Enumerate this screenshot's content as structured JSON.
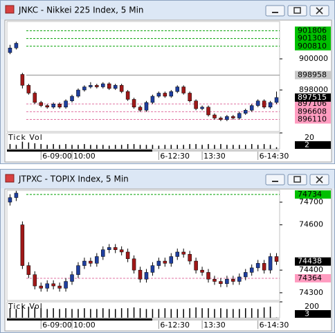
{
  "chart_data": [
    {
      "type": "candlestick",
      "title": "JNKC - Nikkei 225 Index, 5 Min",
      "categories": [
        null,
        null,
        null,
        null,
        null,
        "6-09:00",
        null,
        null,
        null,
        null,
        "10:00",
        null,
        null,
        null,
        null,
        null,
        null,
        null,
        null,
        null,
        null,
        null,
        null,
        null,
        "6-12:30",
        null,
        null,
        null,
        null,
        null,
        null,
        "13:30",
        null,
        null,
        null,
        null,
        null,
        null,
        null,
        null,
        "6-14:30",
        null,
        null,
        null
      ],
      "open": [
        900400,
        900700,
        899000,
        898300,
        897800,
        897200,
        897000,
        896900,
        897100,
        896900,
        897300,
        897600,
        898000,
        898200,
        898300,
        898200,
        898400,
        898100,
        898300,
        897900,
        897400,
        896900,
        896700,
        897200,
        897600,
        897800,
        897600,
        897900,
        898200,
        897800,
        897300,
        896800,
        896900,
        896400,
        896200,
        896100,
        896300,
        896200,
        896500,
        896700,
        897000,
        897300,
        896900,
        897200
      ],
      "high": [
        900900,
        901100,
        899100,
        898400,
        897900,
        897300,
        897100,
        897200,
        897200,
        897400,
        897700,
        898100,
        898300,
        898500,
        898400,
        898500,
        898500,
        898400,
        898400,
        898000,
        897500,
        897000,
        897300,
        897700,
        897900,
        897900,
        898000,
        898300,
        898300,
        897900,
        897400,
        897000,
        897000,
        896500,
        896300,
        896400,
        896400,
        896600,
        896800,
        897100,
        897400,
        897400,
        897300,
        897900
      ],
      "low": [
        900300,
        900600,
        898100,
        897700,
        897100,
        896900,
        896800,
        896800,
        896800,
        896800,
        897200,
        897500,
        897900,
        898100,
        898100,
        898100,
        898000,
        898000,
        897800,
        897300,
        896800,
        896600,
        896600,
        897100,
        897500,
        897500,
        897500,
        897800,
        897700,
        897200,
        896700,
        896700,
        896300,
        896100,
        896000,
        896000,
        896100,
        896100,
        896400,
        896600,
        896900,
        896800,
        896800,
        897100
      ],
      "close": [
        900700,
        901000,
        898300,
        897800,
        897200,
        897000,
        896900,
        897100,
        896900,
        897300,
        897600,
        898000,
        898200,
        898300,
        898200,
        898400,
        898100,
        898300,
        897900,
        897400,
        896900,
        896700,
        897200,
        897600,
        897800,
        897600,
        897900,
        898200,
        897800,
        897300,
        896800,
        896900,
        896400,
        896200,
        896100,
        896300,
        896200,
        896500,
        896700,
        897000,
        897300,
        896900,
        897200,
        897515
      ],
      "up_color": "#1f3f9f",
      "down_color": "#a01818",
      "ylim": [
        895333,
        902400
      ],
      "yticks": [
        898000,
        900000
      ],
      "levels": [
        {
          "value": 901806,
          "color": "#00c000"
        },
        {
          "value": 901308,
          "color": "#00c000"
        },
        {
          "value": 900810,
          "color": "#00c000"
        },
        {
          "value": 898958,
          "color": "#c8c8c8"
        },
        {
          "value": 897106,
          "color": "#ff9cc0"
        },
        {
          "value": 896608,
          "color": "#ff9cc0"
        },
        {
          "value": 896110,
          "color": "#ff9cc0"
        }
      ],
      "volume_label": "Tick Vol",
      "volume_lim": [
        0,
        20
      ],
      "volume_ticks": [
        20
      ],
      "volume": [
        6,
        5,
        9,
        8,
        7,
        6,
        5,
        6,
        5,
        6,
        5,
        5,
        6,
        5,
        5,
        5,
        4,
        5,
        5,
        6,
        6,
        5,
        5,
        5,
        4,
        5,
        5,
        5,
        5,
        6,
        6,
        5,
        6,
        5,
        6,
        5,
        5,
        5,
        5,
        6,
        5,
        6,
        5,
        2
      ]
    },
    {
      "type": "candlestick",
      "title": "JTPXC - TOPIX Index, 5 Min",
      "categories": [
        null,
        null,
        null,
        null,
        null,
        "6-09:00",
        null,
        null,
        null,
        null,
        "10:00",
        null,
        null,
        null,
        null,
        null,
        null,
        null,
        null,
        null,
        null,
        null,
        null,
        null,
        "6-12:30",
        null,
        null,
        null,
        null,
        null,
        null,
        "13:30",
        null,
        null,
        null,
        null,
        null,
        null,
        null,
        null,
        "6-14:30",
        null,
        null,
        null
      ],
      "open": [
        74700,
        74720,
        74600,
        74420,
        74380,
        74330,
        74320,
        74340,
        74330,
        74320,
        74350,
        74380,
        74420,
        74440,
        74430,
        74460,
        74490,
        74500,
        74490,
        74480,
        74450,
        74400,
        74360,
        74390,
        74420,
        74440,
        74430,
        74460,
        74480,
        74470,
        74440,
        74400,
        74390,
        74360,
        74350,
        74340,
        74360,
        74350,
        74370,
        74390,
        74410,
        74430,
        74400,
        74460
      ],
      "high": [
        74735,
        74750,
        74615,
        74435,
        74395,
        74345,
        74355,
        74355,
        74345,
        74365,
        74395,
        74435,
        74455,
        74455,
        74475,
        74505,
        74515,
        74515,
        74505,
        74495,
        74465,
        74415,
        74405,
        74435,
        74455,
        74455,
        74475,
        74495,
        74495,
        74485,
        74455,
        74415,
        74405,
        74375,
        74365,
        74375,
        74375,
        74385,
        74405,
        74425,
        74445,
        74445,
        74475,
        74475
      ],
      "low": [
        74685,
        74705,
        74405,
        74365,
        74315,
        74305,
        74305,
        74315,
        74305,
        74305,
        74335,
        74365,
        74405,
        74415,
        74415,
        74445,
        74475,
        74475,
        74465,
        74435,
        74385,
        74345,
        74345,
        74375,
        74405,
        74415,
        74415,
        74445,
        74455,
        74425,
        74385,
        74375,
        74345,
        74335,
        74325,
        74325,
        74335,
        74335,
        74355,
        74375,
        74395,
        74385,
        74385,
        74423
      ],
      "close": [
        74720,
        74740,
        74420,
        74380,
        74330,
        74320,
        74340,
        74330,
        74320,
        74350,
        74380,
        74420,
        74440,
        74430,
        74460,
        74490,
        74500,
        74490,
        74480,
        74450,
        74400,
        74360,
        74390,
        74420,
        74440,
        74430,
        74460,
        74480,
        74470,
        74440,
        74400,
        74390,
        74360,
        74350,
        74340,
        74360,
        74350,
        74370,
        74390,
        74410,
        74430,
        74400,
        74460,
        74438
      ],
      "up_color": "#1f3f9f",
      "down_color": "#a01818",
      "ylim": [
        74266,
        74752
      ],
      "yticks": [
        74300,
        74400,
        74600,
        74700
      ],
      "levels": [
        {
          "value": 74734,
          "color": "#00c000"
        },
        {
          "value": 74364,
          "color": "#ff9cc0"
        }
      ],
      "volume_label": "Tick Vol",
      "volume_lim": [
        0,
        200
      ],
      "volume_ticks": [
        200
      ],
      "volume": [
        120,
        110,
        150,
        140,
        130,
        120,
        110,
        120,
        110,
        120,
        110,
        110,
        120,
        110,
        110,
        120,
        110,
        110,
        120,
        120,
        130,
        120,
        110,
        110,
        110,
        120,
        110,
        110,
        110,
        120,
        130,
        120,
        120,
        110,
        120,
        110,
        110,
        110,
        120,
        120,
        110,
        130,
        140,
        3
      ]
    }
  ]
}
